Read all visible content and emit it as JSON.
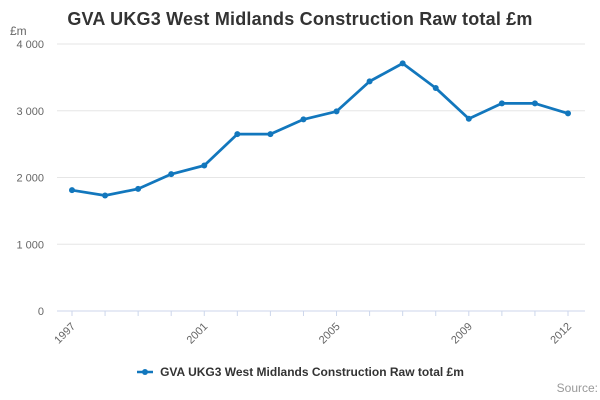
{
  "title": "GVA UKG3 West Midlands Construction Raw total £m",
  "y_axis": {
    "unit_label": "£m",
    "tick_values": [
      0,
      1000,
      2000,
      3000,
      4000
    ],
    "tick_labels": [
      "0",
      "1 000",
      "2 000",
      "3 000",
      "4 000"
    ]
  },
  "x_axis": {
    "labeled_years": [
      "1997",
      "2001",
      "2005",
      "2009",
      "2012"
    ]
  },
  "legend": {
    "label": "GVA UKG3 West Midlands Construction Raw total £m"
  },
  "credits": {
    "label": "Source:"
  },
  "colors": {
    "line": "#1277bd",
    "grid": "#e6e6e6",
    "axis": "#ccd6eb",
    "tick_text": "#666666",
    "title_text": "#333333",
    "legend_text": "#333333",
    "credits_text": "#999999"
  },
  "chart_data": {
    "type": "line",
    "title": "GVA UKG3 West Midlands Construction Raw total £m",
    "x": [
      1997,
      1998,
      1999,
      2000,
      2001,
      2002,
      2003,
      2004,
      2005,
      2006,
      2007,
      2008,
      2009,
      2010,
      2011,
      2012
    ],
    "series": [
      {
        "name": "GVA UKG3 West Midlands Construction Raw total £m",
        "values": [
          1810,
          1730,
          1830,
          2050,
          2180,
          2650,
          2650,
          2870,
          2990,
          3440,
          3710,
          3340,
          2880,
          3110,
          3110,
          2960
        ]
      }
    ],
    "xlabel": "",
    "ylabel": "£m",
    "ylim": [
      0,
      4000
    ],
    "grid": true,
    "legend_position": "bottom"
  }
}
